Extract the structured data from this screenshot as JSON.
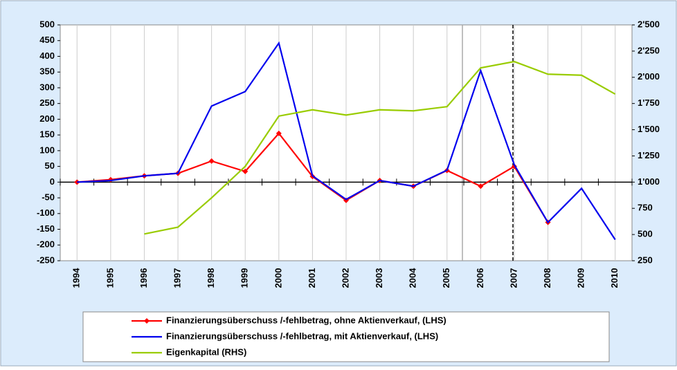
{
  "chart_data": {
    "type": "line",
    "categories": [
      "1994",
      "1995",
      "1996",
      "1997",
      "1998",
      "1999",
      "2000",
      "2001",
      "2002",
      "2003",
      "2004",
      "2005",
      "2006",
      "2007",
      "2008",
      "2009",
      "2010"
    ],
    "series": [
      {
        "name": "Finanzierungsüberschuss /-fehlbetrag, ohne Aktienverkauf, (LHS)",
        "color": "#ff0000",
        "marker": true,
        "values": [
          0,
          8,
          20,
          28,
          67,
          34,
          155,
          18,
          -58,
          5,
          -13,
          37,
          -13,
          50,
          -128,
          null,
          null
        ]
      },
      {
        "name": "Finanzierungsüberschuss /-fehlbetrag, mit Aktienverkauf, (LHS)",
        "color": "#0000ee",
        "values": [
          0,
          5,
          20,
          28,
          242,
          288,
          442,
          20,
          -55,
          5,
          -13,
          38,
          355,
          55,
          -128,
          -20,
          -183
        ]
      },
      {
        "name": "Eigenkapital (RHS)",
        "color": "#99cc00",
        "axis": "y2",
        "values": [
          null,
          null,
          505,
          570,
          850,
          1150,
          1630,
          1690,
          1640,
          1690,
          1680,
          1720,
          2090,
          2150,
          2030,
          2020,
          1840
        ]
      }
    ],
    "ylim": [
      -250,
      500
    ],
    "yticks": [
      -250,
      -200,
      -150,
      -100,
      -50,
      0,
      50,
      100,
      150,
      200,
      250,
      300,
      350,
      400,
      450,
      500
    ],
    "y2lim": [
      250,
      2500
    ],
    "y2ticks": [
      250,
      500,
      750,
      {
        "value": 1000,
        "label": "1'000"
      },
      {
        "value": 1250,
        "label": "1'250"
      },
      {
        "value": 1500,
        "label": "1'500"
      },
      {
        "value": 1750,
        "label": "1'750"
      },
      {
        "value": 2000,
        "label": "2'000"
      },
      {
        "value": 2250,
        "label": "2'250"
      },
      {
        "value": 2500,
        "label": "2'500"
      }
    ],
    "grid": true,
    "legend": "bottom"
  }
}
